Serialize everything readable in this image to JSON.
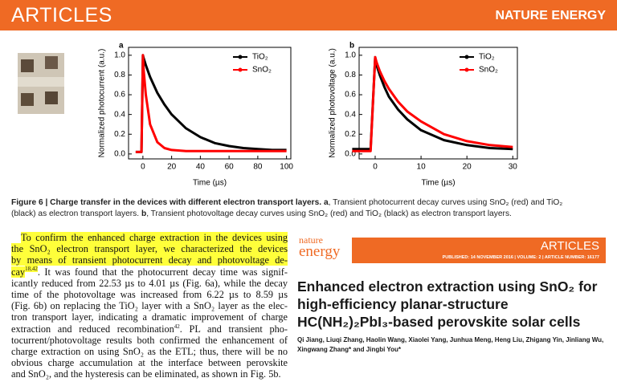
{
  "header": {
    "section": "ARTICLES",
    "journal": "NATURE ENERGY"
  },
  "chart_data": [
    {
      "type": "line",
      "panel": "a",
      "xlabel": "Time (µs)",
      "ylabel": "Normalized photocurrent (a.u.)",
      "x": [
        -5,
        -1,
        0,
        0.5,
        2,
        5,
        10,
        15,
        20,
        30,
        40,
        50,
        60,
        70,
        80,
        90,
        100
      ],
      "xlim": [
        -10,
        103
      ],
      "xticks": [
        0,
        20,
        40,
        60,
        80,
        100
      ],
      "ylim": [
        -0.05,
        1.08
      ],
      "yticks": [
        {
          "value": 0,
          "label": "0.0"
        },
        0.2,
        0.4,
        0.6,
        0.8,
        {
          "value": 1,
          "label": "1.0"
        }
      ],
      "legend": "upper right",
      "series": [
        {
          "name": "TiO₂",
          "color": "#000000",
          "values": [
            0.02,
            0.02,
            1.0,
            0.97,
            0.9,
            0.78,
            0.62,
            0.5,
            0.4,
            0.26,
            0.17,
            0.11,
            0.08,
            0.06,
            0.05,
            0.04,
            0.04
          ]
        },
        {
          "name": "SnO₂",
          "color": "#ff0000",
          "values": [
            0.02,
            0.02,
            1.0,
            0.85,
            0.6,
            0.3,
            0.12,
            0.06,
            0.04,
            0.03,
            0.03,
            0.03,
            0.03,
            0.03,
            0.03,
            0.03,
            0.03
          ]
        }
      ]
    },
    {
      "type": "line",
      "panel": "b",
      "xlabel": "Time (µs)",
      "ylabel": "Normalized photovoltage (a.u.)",
      "x": [
        -5,
        -1,
        0,
        0.3,
        1,
        2,
        3,
        5,
        7,
        10,
        15,
        20,
        25,
        30
      ],
      "xlim": [
        -3.5,
        31
      ],
      "xticks": [
        0,
        10,
        20,
        30
      ],
      "ylim": [
        -0.05,
        1.08
      ],
      "yticks": [
        {
          "value": 0,
          "label": "0.0"
        },
        0.2,
        0.4,
        0.6,
        0.8,
        {
          "value": 1,
          "label": "1.0"
        }
      ],
      "legend": "upper right",
      "series": [
        {
          "name": "TiO₂",
          "color": "#000000",
          "values": [
            0.05,
            0.05,
            0.98,
            0.9,
            0.8,
            0.68,
            0.58,
            0.45,
            0.35,
            0.24,
            0.14,
            0.09,
            0.06,
            0.05
          ]
        },
        {
          "name": "SnO₂",
          "color": "#ff0000",
          "values": [
            0.03,
            0.03,
            0.98,
            0.93,
            0.84,
            0.74,
            0.66,
            0.53,
            0.43,
            0.33,
            0.2,
            0.13,
            0.09,
            0.07
          ]
        }
      ]
    }
  ],
  "caption": {
    "title": "Figure 6 | Charge transfer in the devices with different electron transport layers.",
    "a_label": "a",
    "a_text": ", Transient photocurrent decay curves using SnO₂ (red) and TiO₂ (black) as electron transport layers.",
    "b_label": "b",
    "b_text": ", Transient photovoltage decay curves using SnO₂ (red) and TiO₂ (black) as electron transport layers."
  },
  "body": {
    "lines": [
      "To confirm the enhanced charge extraction in the devices using",
      "the SnO₂ electron transport layer, we characterized the devices",
      "by means of transient photocurrent decay and photovoltage de-",
      [
        "cay",
        "18,42",
        ". It was found that the photocurrent decay time was signif-"
      ],
      "icantly reduced from 22.53 µs to 4.01 µs (Fig. 6a), while the decay",
      "time of the photovoltage was increased from 6.22 µs to 8.59 µs",
      "(Fig. 6b) on replacing the TiO₂ layer with a SnO₂ layer as the elec-",
      "tron transport layer, indicating a dramatic improvement of charge",
      [
        "extraction and reduced recombination",
        "42",
        ". PL and transient pho-"
      ],
      "tocurrent/photovoltage results both confirmed the enhancement of",
      "charge extraction on using SnO₂ as the ETL; thus, there will be no",
      "obvious charge accumulation at the interface between perovskite",
      "and SnO₂, and the hysteresis can be eliminated, as shown in Fig. 5b."
    ]
  },
  "inset": {
    "logo_top": "nature",
    "logo_bottom": "energy",
    "section": "ARTICLES",
    "published": "PUBLISHED: 14 NOVEMBER 2016 | VOLUME: 2 | ARTICLE NUMBER: 16177",
    "title_lines": [
      "Enhanced electron extraction using SnO₂ for",
      "high-efficiency planar-structure",
      "HC(NH₂)₂PbI₃-based perovskite solar cells"
    ],
    "author_lines": [
      "Qi Jiang, Liuqi Zhang, Haolin Wang, Xiaolei Yang, Junhua Meng, Heng Liu, Zhigang Yin, Jinliang Wu,",
      "Xingwang Zhang* and Jingbi You*"
    ]
  }
}
